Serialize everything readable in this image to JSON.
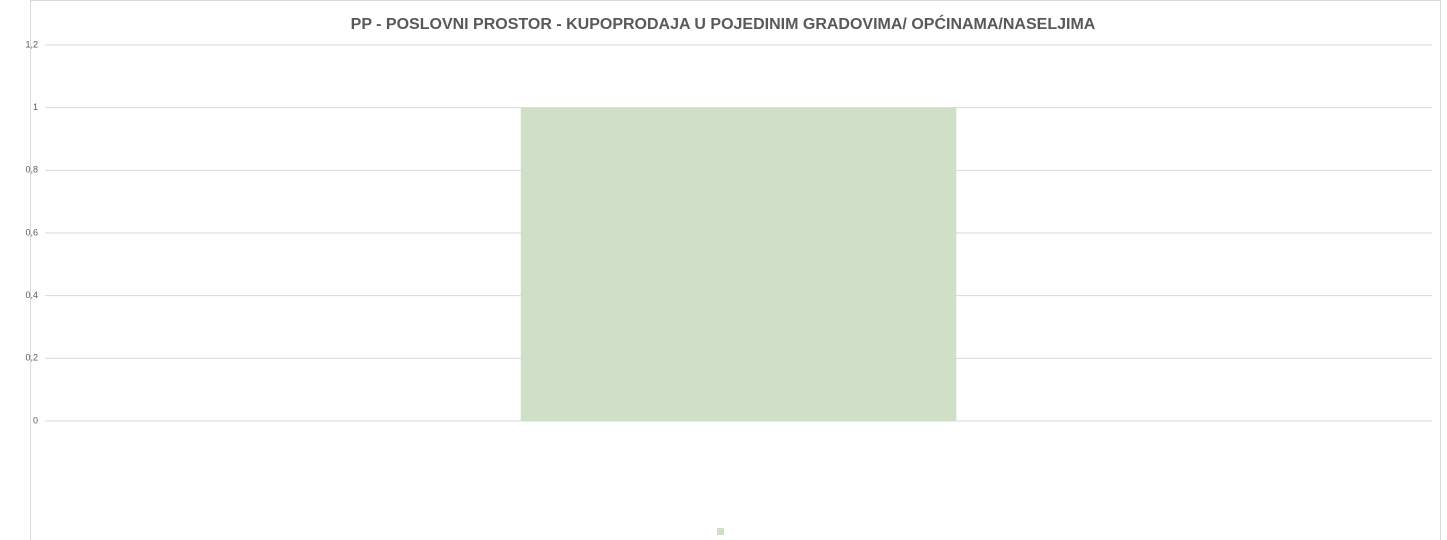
{
  "chart_data": {
    "type": "bar",
    "title": "PP - POSLOVNI PROSTOR - KUPOPRODAJA U POJEDINIM GRADOVIMA/ OPĆINAMA/NASELJIMA",
    "categories": [
      null
    ],
    "values": [
      1
    ],
    "color": "#d0e0c8",
    "ylim": [
      0,
      1.2
    ],
    "yticks": [
      0,
      {
        "value": 0.2,
        "label": "0,2"
      },
      {
        "value": 0.4,
        "label": "0,4"
      },
      {
        "value": 0.6,
        "label": "0,6"
      },
      {
        "value": 0.8,
        "label": "0,8"
      },
      1,
      {
        "value": 1.2,
        "label": "1,2"
      }
    ],
    "grid": true
  }
}
